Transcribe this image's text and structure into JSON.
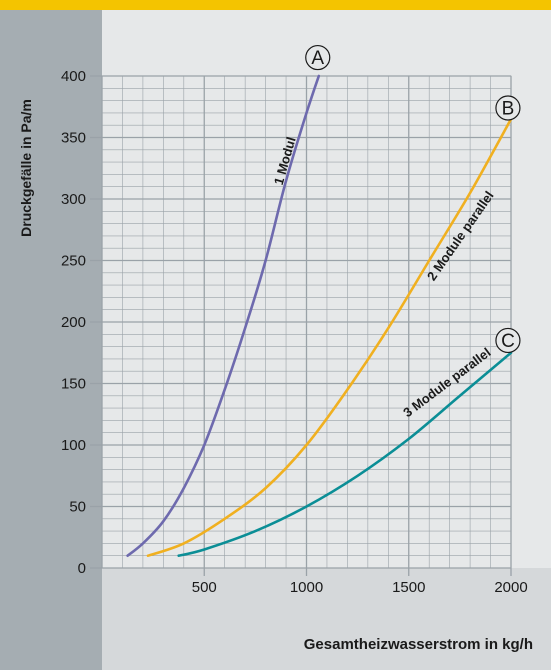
{
  "colors": {
    "accent_yellow": "#f4c400",
    "left_panel": "#a5adb2",
    "background": "#e6e8e9",
    "grid": "#9aa2a8",
    "series_a": "#6e6aae",
    "series_b": "#f0b020",
    "series_c": "#0b8e96"
  },
  "chart_data": {
    "type": "line",
    "title": "",
    "xlabel": "Gesamtheizwasserstrom in kg/h",
    "ylabel": "Druckgefälle in Pa/m",
    "xlim": [
      0,
      2000
    ],
    "ylim": [
      0,
      400
    ],
    "x_ticks": [
      500,
      1000,
      1500,
      2000
    ],
    "y_ticks": [
      0,
      50,
      100,
      150,
      200,
      250,
      300,
      350,
      400
    ],
    "grid": true,
    "series": [
      {
        "name": "1 Modul",
        "marker": "A",
        "color": "#6e6aae",
        "x": [
          125,
          200,
          300,
          400,
          500,
          600,
          700,
          800,
          900,
          1000,
          1060
        ],
        "y": [
          10,
          20,
          38,
          65,
          100,
          145,
          195,
          250,
          315,
          370,
          400
        ]
      },
      {
        "name": "2 Module parallel",
        "marker": "B",
        "color": "#f0b020",
        "x": [
          225,
          400,
          600,
          800,
          1000,
          1200,
          1400,
          1600,
          1800,
          2000
        ],
        "y": [
          10,
          20,
          40,
          65,
          100,
          145,
          195,
          250,
          305,
          365
        ]
      },
      {
        "name": "3 Module parallel",
        "marker": "C",
        "color": "#0b8e96",
        "x": [
          375,
          500,
          750,
          1000,
          1250,
          1500,
          1750,
          2000
        ],
        "y": [
          10,
          15,
          30,
          50,
          75,
          105,
          140,
          175
        ]
      }
    ]
  }
}
